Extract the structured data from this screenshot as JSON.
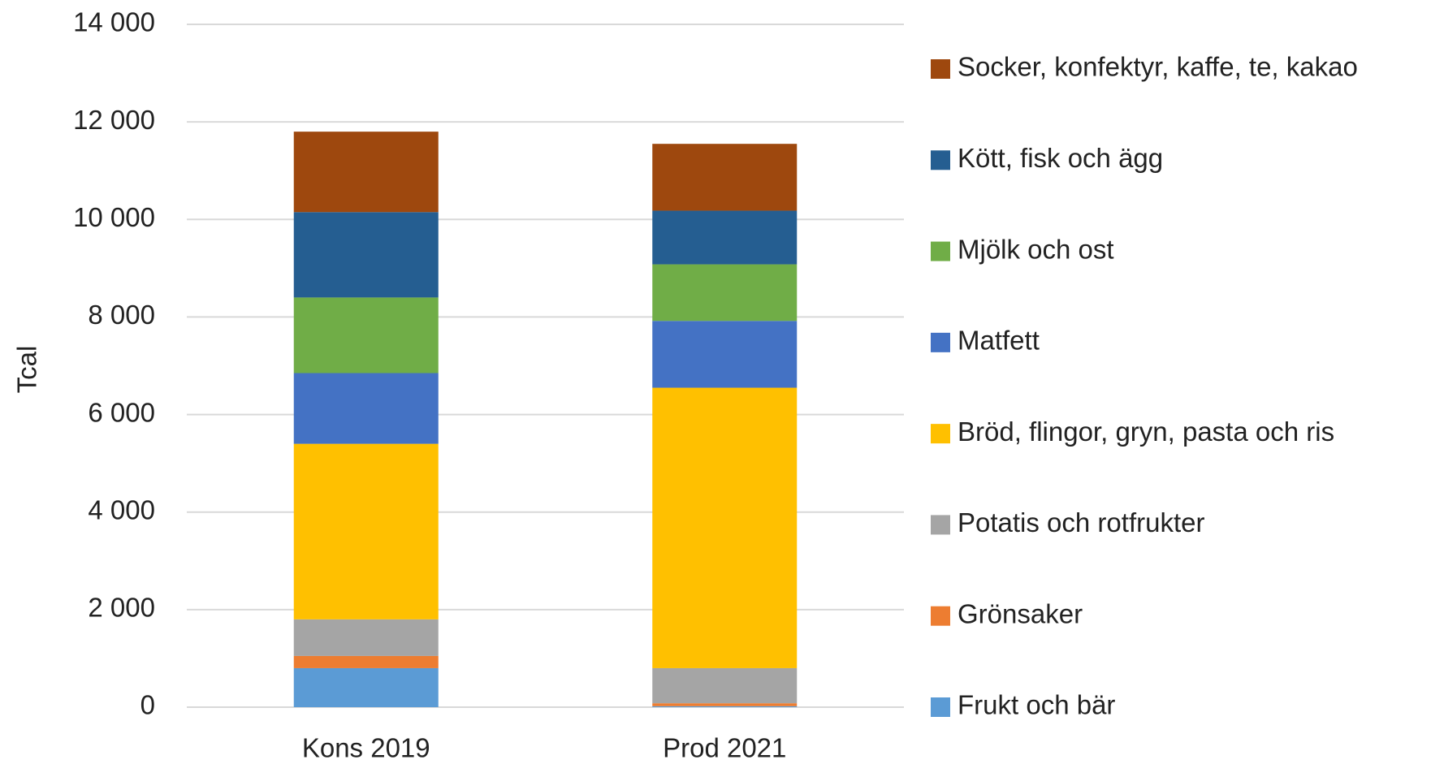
{
  "chart_data": {
    "type": "stacked_bar",
    "y_label": "Tcal",
    "categories": [
      "Kons 2019",
      "Prod 2021"
    ],
    "series": [
      {
        "name": "Frukt och bär",
        "color": "#5b9bd5",
        "values": [
          800,
          20
        ]
      },
      {
        "name": "Grönsaker",
        "color": "#ed7d31",
        "values": [
          250,
          60
        ]
      },
      {
        "name": "Potatis och rotfrukter",
        "color": "#a5a5a5",
        "values": [
          750,
          720
        ]
      },
      {
        "name": "Bröd, flingor, gryn, pasta och ris",
        "color": "#ffc000",
        "values": [
          3600,
          5750
        ]
      },
      {
        "name": "Matfett",
        "color": "#4472c4",
        "values": [
          1450,
          1370
        ]
      },
      {
        "name": "Mjölk och ost",
        "color": "#70ad47",
        "values": [
          1550,
          1160
        ]
      },
      {
        "name": "Kött, fisk och ägg",
        "color": "#255e91",
        "values": [
          1750,
          1100
        ]
      },
      {
        "name": "Socker, konfektyr, kaffe, te, kakao",
        "color": "#9e480e",
        "values": [
          1650,
          1370
        ]
      }
    ],
    "ylim": [
      0,
      14000
    ],
    "yticks": [
      0,
      {
        "value": 2000,
        "label": "2 000"
      },
      {
        "value": 4000,
        "label": "4 000"
      },
      {
        "value": 6000,
        "label": "6 000"
      },
      {
        "value": 8000,
        "label": "8 000"
      },
      {
        "value": 10000,
        "label": "10 000"
      },
      {
        "value": 12000,
        "label": "12 000"
      },
      {
        "value": 14000,
        "label": "14 000"
      }
    ],
    "grid": true,
    "legend": "right"
  }
}
